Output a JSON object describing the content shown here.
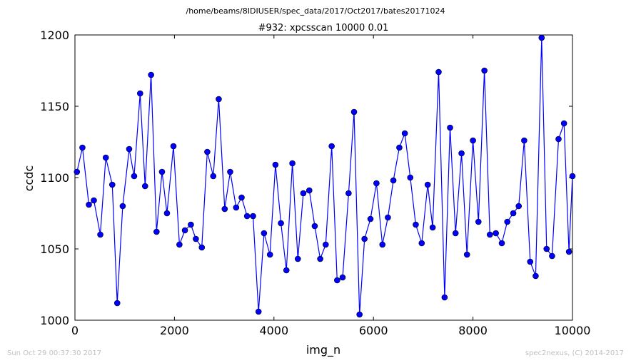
{
  "suptitle": "/home/beams/8IDIUSER/spec_data/2017/Oct2017/bates20171024",
  "footer_left": "Sun Oct 29 00:37:30 2017",
  "footer_right": "spec2nexus, (C) 2014-2017",
  "chart_data": {
    "type": "line",
    "title": "#932: xpcsscan 10000 0.01",
    "xlabel": "img_n",
    "ylabel": "ccdc",
    "xlim": [
      0,
      10000
    ],
    "ylim": [
      1000,
      1200
    ],
    "xticks": [
      0,
      2000,
      4000,
      6000,
      8000,
      10000
    ],
    "yticks": [
      1000,
      1050,
      1100,
      1150,
      1200
    ],
    "grid": false,
    "line_color": "#0000ff",
    "marker_color": "#0000ff",
    "marker": "circle",
    "x": [
      40,
      150,
      280,
      380,
      510,
      620,
      750,
      850,
      960,
      1090,
      1190,
      1310,
      1410,
      1530,
      1640,
      1750,
      1850,
      1980,
      2100,
      2210,
      2330,
      2430,
      2550,
      2660,
      2780,
      2890,
      3010,
      3120,
      3240,
      3350,
      3460,
      3580,
      3690,
      3800,
      3920,
      4030,
      4140,
      4250,
      4370,
      4480,
      4590,
      4710,
      4820,
      4930,
      5040,
      5160,
      5270,
      5380,
      5500,
      5610,
      5720,
      5820,
      5940,
      6060,
      6180,
      6290,
      6400,
      6520,
      6630,
      6740,
      6850,
      6970,
      7090,
      7190,
      7310,
      7430,
      7540,
      7650,
      7770,
      7880,
      8000,
      8110,
      8230,
      8340,
      8460,
      8580,
      8690,
      8810,
      8920,
      9030,
      9150,
      9260,
      9380,
      9480,
      9590,
      9720,
      9830,
      9930,
      10000
    ],
    "y": [
      1104,
      1121,
      1081,
      1084,
      1060,
      1114,
      1095,
      1012,
      1080,
      1120,
      1101,
      1159,
      1094,
      1172,
      1062,
      1104,
      1075,
      1122,
      1053,
      1063,
      1067,
      1057,
      1051,
      1118,
      1101,
      1155,
      1078,
      1104,
      1079,
      1086,
      1073,
      1073,
      1006,
      1061,
      1046,
      1109,
      1068,
      1035,
      1110,
      1043,
      1089,
      1091,
      1066,
      1043,
      1053,
      1122,
      1028,
      1030,
      1089,
      1146,
      1004,
      1057,
      1071,
      1096,
      1053,
      1072,
      1098,
      1121,
      1131,
      1100,
      1067,
      1054,
      1095,
      1065,
      1174,
      1016,
      1135,
      1061,
      1117,
      1046,
      1126,
      1069,
      1175,
      1060,
      1061,
      1054,
      1069,
      1075,
      1080,
      1126,
      1041,
      1031,
      1198,
      1050,
      1045,
      1127,
      1138,
      1048,
      1101
    ]
  }
}
